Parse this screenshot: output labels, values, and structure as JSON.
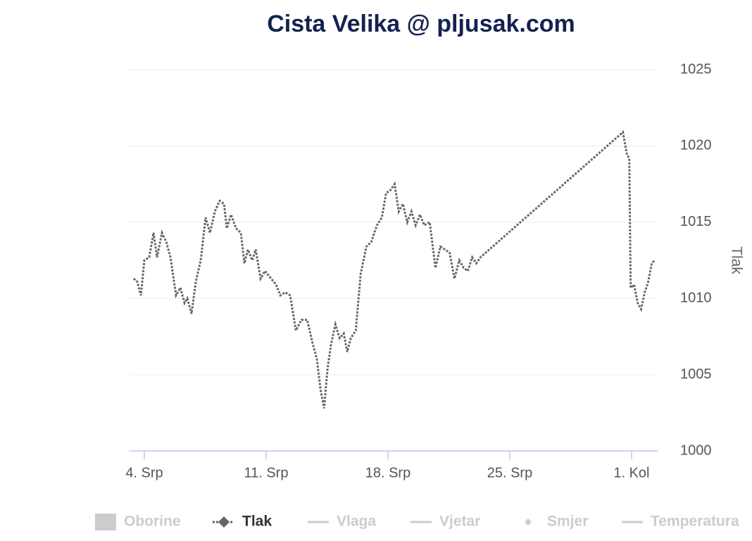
{
  "chart_data": {
    "type": "line",
    "title": "Cista Velika @ pljusak.com",
    "ylabel": "Tlak",
    "xlim": [
      3.11,
      33.54
    ],
    "ylim": [
      1000,
      1025
    ],
    "xticks": [
      {
        "value": 4,
        "label": "4. Srp"
      },
      {
        "value": 11,
        "label": "11. Srp"
      },
      {
        "value": 18,
        "label": "18. Srp"
      },
      {
        "value": 25,
        "label": "25. Srp"
      },
      {
        "value": 32,
        "label": "1. Kol"
      }
    ],
    "yticks": [
      1000,
      1005,
      1010,
      1015,
      1020,
      1025
    ],
    "grid": true,
    "legend": "bottom",
    "series": [
      {
        "name": "Oborine",
        "symbol": "square",
        "visible": false
      },
      {
        "name": "Tlak",
        "symbol": "diamond",
        "visible": true,
        "color": "#666666",
        "line_style": "dotted",
        "x": [
          3.39,
          3.59,
          3.8,
          4.0,
          4.28,
          4.53,
          4.73,
          5.01,
          5.26,
          5.5,
          5.82,
          6.07,
          6.31,
          6.47,
          6.71,
          6.96,
          7.24,
          7.52,
          7.77,
          8.05,
          8.33,
          8.58,
          8.74,
          8.98,
          9.27,
          9.55,
          9.75,
          9.95,
          10.2,
          10.4,
          10.68,
          10.93,
          11.29,
          11.57,
          11.82,
          12.1,
          12.38,
          12.71,
          13.03,
          13.36,
          13.64,
          13.92,
          14.13,
          14.33,
          14.53,
          14.73,
          14.98,
          15.22,
          15.46,
          15.66,
          15.87,
          16.15,
          16.43,
          16.76,
          17.04,
          17.37,
          17.65,
          17.89,
          18.14,
          18.38,
          18.62,
          18.86,
          19.11,
          19.35,
          19.59,
          19.84,
          20.08,
          20.4,
          20.73,
          21.01,
          21.29,
          21.54,
          21.82,
          22.1,
          22.35,
          22.59,
          22.84,
          23.08,
          23.32,
          31.5,
          31.74,
          31.87,
          31.95,
          32.15,
          32.35,
          32.55,
          32.76,
          32.96,
          33.16,
          33.32
        ],
        "values": [
          1011.3,
          1011.1,
          1010.2,
          1012.5,
          1012.7,
          1014.3,
          1012.7,
          1014.3,
          1013.7,
          1012.7,
          1010.2,
          1010.7,
          1009.7,
          1010.0,
          1009.0,
          1011.1,
          1012.5,
          1015.3,
          1014.3,
          1015.7,
          1016.4,
          1016.2,
          1014.6,
          1015.5,
          1014.6,
          1014.3,
          1012.3,
          1013.2,
          1012.5,
          1013.2,
          1011.3,
          1011.8,
          1011.3,
          1010.9,
          1010.2,
          1010.4,
          1010.2,
          1007.9,
          1008.6,
          1008.6,
          1007.2,
          1006.0,
          1004.0,
          1002.8,
          1005.4,
          1007.0,
          1008.3,
          1007.4,
          1007.7,
          1006.5,
          1007.4,
          1007.9,
          1011.6,
          1013.4,
          1013.7,
          1014.8,
          1015.3,
          1016.9,
          1017.1,
          1017.5,
          1015.7,
          1016.2,
          1015.0,
          1015.7,
          1014.8,
          1015.5,
          1014.8,
          1015.0,
          1012.0,
          1013.4,
          1013.2,
          1013.0,
          1011.3,
          1012.5,
          1012.0,
          1011.8,
          1012.7,
          1012.3,
          1012.7,
          1020.9,
          1019.4,
          1019.2,
          1010.7,
          1010.9,
          1009.7,
          1009.3,
          1010.4,
          1011.1,
          1012.3,
          1012.5
        ]
      },
      {
        "name": "Vlaga",
        "symbol": "line",
        "visible": false
      },
      {
        "name": "Vjetar",
        "symbol": "line",
        "visible": false
      },
      {
        "name": "Smjer",
        "symbol": "diamond",
        "visible": false
      },
      {
        "name": "Temperatura",
        "symbol": "line",
        "visible": false
      }
    ]
  }
}
